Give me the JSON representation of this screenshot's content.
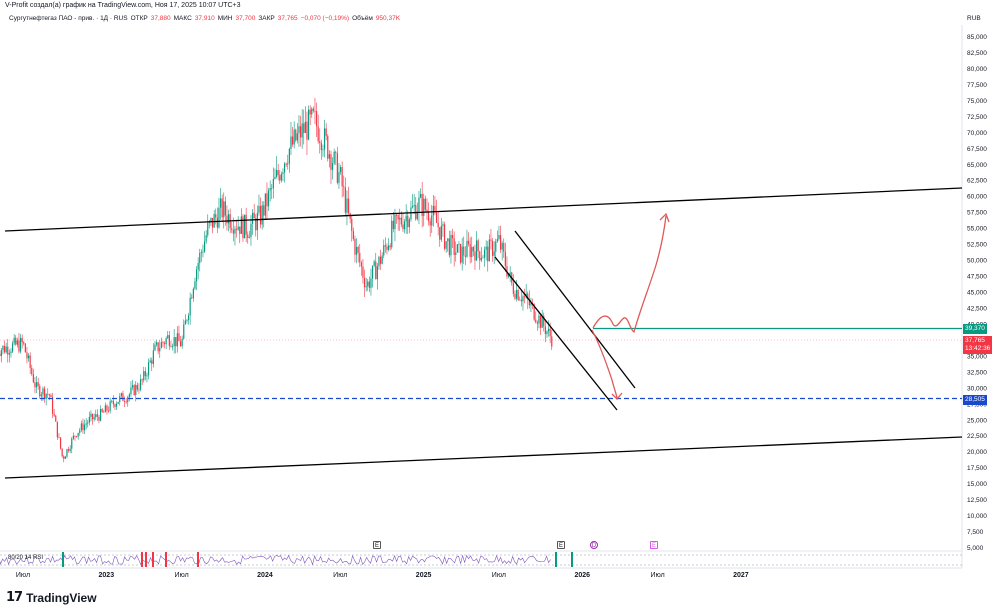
{
  "header": {
    "credit": "V-Profit создал(а) график на TradingView.com, Ноя 17, 2025 10:07 UTC+3",
    "symbol": "Сургутнефтегаз ПАО - прив. · 1Д · RUS",
    "open_label": "ОТКР",
    "open": "37,880",
    "high_label": "МАКС",
    "high": "37,910",
    "low_label": "МИН",
    "low": "37,700",
    "close_label": "ЗАКР",
    "close": "37,765",
    "change": "−0,070 (−0,19%)",
    "volume_label": "Объём",
    "volume": "950,37K"
  },
  "currency": "RUB",
  "badges": {
    "level_green": "39,370",
    "price": "37,765",
    "countdown": "13:42:36",
    "level_blue": "28,505"
  },
  "rsi_label": "80/20 14 RSI",
  "events": [
    "E",
    "E",
    "D",
    "E"
  ],
  "footer": {
    "logo_mark": "17",
    "logo_text": "TradingView"
  },
  "colors": {
    "up": "#089981",
    "down": "#f23645",
    "trend": "#000000",
    "level_green": "#089981",
    "level_blue": "#1848cc",
    "projection": "#e05a5a"
  },
  "chart_data": {
    "type": "candlestick",
    "y_axis": {
      "min": 5000,
      "max": 85000,
      "step": 2500,
      "labels_side": "right",
      "tick_labels": [
        "5,000",
        "7,500",
        "10,000",
        "12,500",
        "15,000",
        "17,500",
        "20,000",
        "22,500",
        "25,000",
        "27,500",
        "30,000",
        "32,500",
        "35,000",
        "37,500",
        "40,000",
        "42,500",
        "45,000",
        "47,500",
        "50,000",
        "52,500",
        "55,000",
        "57,500",
        "60,000",
        "62,500",
        "65,000",
        "67,500",
        "70,000",
        "72,500",
        "75,000",
        "77,500",
        "80,000",
        "82,500",
        "85,000"
      ]
    },
    "x_axis": {
      "tick_labels": [
        {
          "text": "Июл",
          "date": "2022-07",
          "bold": false
        },
        {
          "text": "2023",
          "date": "2023-01",
          "bold": true
        },
        {
          "text": "Июл",
          "date": "2023-07",
          "bold": false
        },
        {
          "text": "2024",
          "date": "2024-01",
          "bold": true
        },
        {
          "text": "Июл",
          "date": "2024-07",
          "bold": false
        },
        {
          "text": "2025",
          "date": "2025-01",
          "bold": true
        },
        {
          "text": "Июл",
          "date": "2025-07",
          "bold": false
        },
        {
          "text": "2026",
          "date": "2026-01",
          "bold": true
        },
        {
          "text": "Июл",
          "date": "2026-07",
          "bold": false
        },
        {
          "text": "2027",
          "date": "2027-01",
          "bold": true
        }
      ]
    },
    "price_path": [
      [
        "2022-05",
        36
      ],
      [
        "2022-07",
        37
      ],
      [
        "2022-08",
        30
      ],
      [
        "2022-09",
        29
      ],
      [
        "2022-10",
        19
      ],
      [
        "2022-11",
        23
      ],
      [
        "2022-12",
        25
      ],
      [
        "2023-01",
        26
      ],
      [
        "2023-02",
        28
      ],
      [
        "2023-03",
        29
      ],
      [
        "2023-04",
        31
      ],
      [
        "2023-05",
        36
      ],
      [
        "2023-06",
        38
      ],
      [
        "2023-07",
        37
      ],
      [
        "2023-08",
        48
      ],
      [
        "2023-09",
        55
      ],
      [
        "2023-10",
        58
      ],
      [
        "2023-11",
        56
      ],
      [
        "2023-12",
        55
      ],
      [
        "2024-01",
        57
      ],
      [
        "2024-02",
        62
      ],
      [
        "2024-03",
        67
      ],
      [
        "2024-04",
        70
      ],
      [
        "2024-05",
        72
      ],
      [
        "2024-06",
        68
      ],
      [
        "2024-07",
        63
      ],
      [
        "2024-08",
        53
      ],
      [
        "2024-09",
        46
      ],
      [
        "2024-10",
        50
      ],
      [
        "2024-11",
        55
      ],
      [
        "2024-12",
        57
      ],
      [
        "2025-01",
        59
      ],
      [
        "2025-02",
        57
      ],
      [
        "2025-03",
        53
      ],
      [
        "2025-04",
        51
      ],
      [
        "2025-05",
        52
      ],
      [
        "2025-06",
        51
      ],
      [
        "2025-07",
        53
      ],
      [
        "2025-08",
        46
      ],
      [
        "2025-09",
        44
      ],
      [
        "2025-10",
        41
      ],
      [
        "2025-11",
        37.8
      ]
    ],
    "levels": [
      {
        "name": "resistance",
        "value": 39370,
        "color": "#089981",
        "style": "solid"
      },
      {
        "name": "support",
        "value": 28505,
        "color": "#1848cc",
        "style": "dashed"
      }
    ],
    "last_price": 37765,
    "grid": false
  }
}
